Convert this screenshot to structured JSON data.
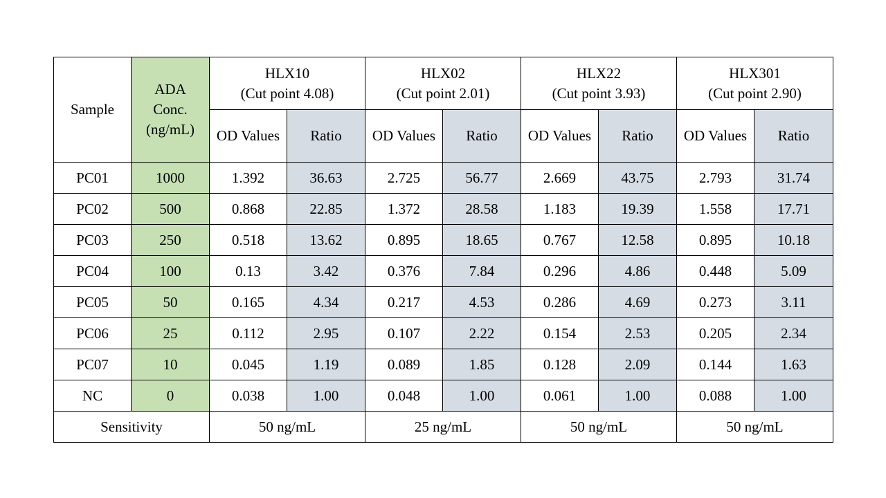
{
  "table": {
    "sample_header": "Sample",
    "conc_header": [
      "ADA",
      "Conc.",
      "(ng/mL)"
    ],
    "groups": [
      {
        "name": "HLX10",
        "cut_point": "(Cut point 4.08)",
        "sensitivity": "50 ng/mL"
      },
      {
        "name": "HLX02",
        "cut_point": "(Cut point 2.01)",
        "sensitivity": "25 ng/mL"
      },
      {
        "name": "HLX22",
        "cut_point": "(Cut point 3.93)",
        "sensitivity": "50 ng/mL"
      },
      {
        "name": "HLX301",
        "cut_point": "(Cut point 2.90)",
        "sensitivity": "50 ng/mL"
      }
    ],
    "od_label": "OD Values",
    "ratio_label": "Ratio",
    "sensitivity_label": "Sensitivity",
    "rows": [
      {
        "sample": "PC01",
        "conc": "1000",
        "values": [
          [
            "1.392",
            "36.63"
          ],
          [
            "2.725",
            "56.77"
          ],
          [
            "2.669",
            "43.75"
          ],
          [
            "2.793",
            "31.74"
          ]
        ]
      },
      {
        "sample": "PC02",
        "conc": "500",
        "values": [
          [
            "0.868",
            "22.85"
          ],
          [
            "1.372",
            "28.58"
          ],
          [
            "1.183",
            "19.39"
          ],
          [
            "1.558",
            "17.71"
          ]
        ]
      },
      {
        "sample": "PC03",
        "conc": "250",
        "values": [
          [
            "0.518",
            "13.62"
          ],
          [
            "0.895",
            "18.65"
          ],
          [
            "0.767",
            "12.58"
          ],
          [
            "0.895",
            "10.18"
          ]
        ]
      },
      {
        "sample": "PC04",
        "conc": "100",
        "values": [
          [
            "0.13",
            "3.42"
          ],
          [
            "0.376",
            "7.84"
          ],
          [
            "0.296",
            "4.86"
          ],
          [
            "0.448",
            "5.09"
          ]
        ]
      },
      {
        "sample": "PC05",
        "conc": "50",
        "values": [
          [
            "0.165",
            "4.34"
          ],
          [
            "0.217",
            "4.53"
          ],
          [
            "0.286",
            "4.69"
          ],
          [
            "0.273",
            "3.11"
          ]
        ]
      },
      {
        "sample": "PC06",
        "conc": "25",
        "values": [
          [
            "0.112",
            "2.95"
          ],
          [
            "0.107",
            "2.22"
          ],
          [
            "0.154",
            "2.53"
          ],
          [
            "0.205",
            "2.34"
          ]
        ]
      },
      {
        "sample": "PC07",
        "conc": "10",
        "values": [
          [
            "0.045",
            "1.19"
          ],
          [
            "0.089",
            "1.85"
          ],
          [
            "0.128",
            "2.09"
          ],
          [
            "0.144",
            "1.63"
          ]
        ]
      },
      {
        "sample": "NC",
        "conc": "0",
        "values": [
          [
            "0.038",
            "1.00"
          ],
          [
            "0.048",
            "1.00"
          ],
          [
            "0.061",
            "1.00"
          ],
          [
            "0.088",
            "1.00"
          ]
        ]
      }
    ]
  }
}
